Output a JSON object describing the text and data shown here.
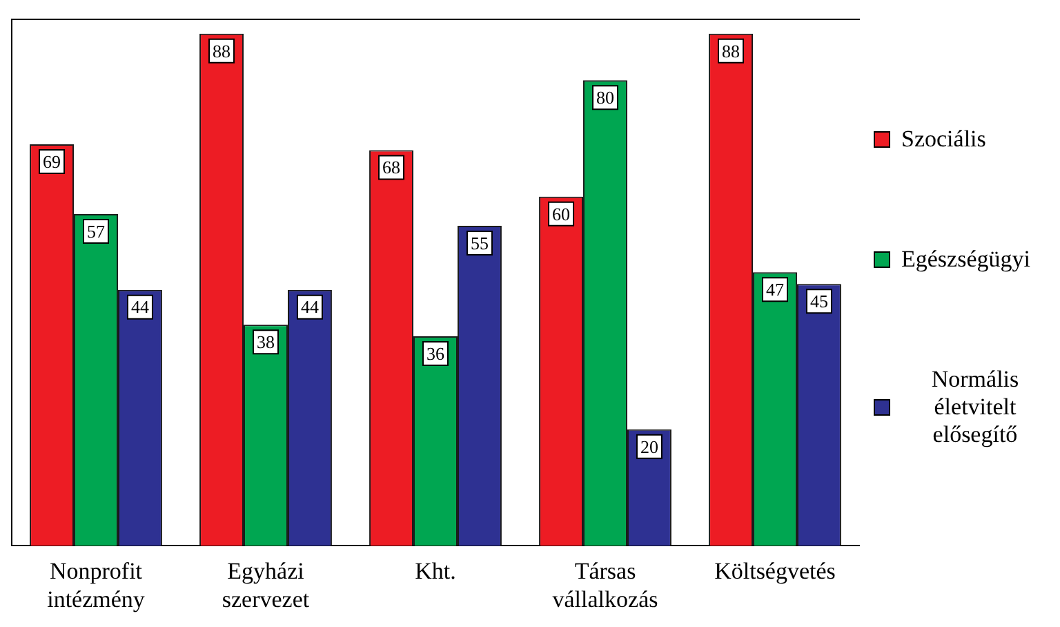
{
  "chart_data": {
    "type": "bar",
    "categories": [
      "Nonprofit intézmény",
      "Egyházi szervezet",
      "Kht.",
      "Társas vállalkozás",
      "Költségvetés"
    ],
    "series": [
      {
        "name": "Szociális",
        "color": "#ed1c24",
        "values": [
          69,
          88,
          68,
          60,
          88
        ]
      },
      {
        "name": "Egészségügyi",
        "color": "#00a651",
        "values": [
          57,
          38,
          36,
          80,
          47
        ]
      },
      {
        "name": "Normális életvitelt elősegítő",
        "color": "#2e3192",
        "values": [
          44,
          44,
          55,
          20,
          45
        ]
      }
    ],
    "data_labels": true,
    "legend": "right",
    "grid": false
  }
}
